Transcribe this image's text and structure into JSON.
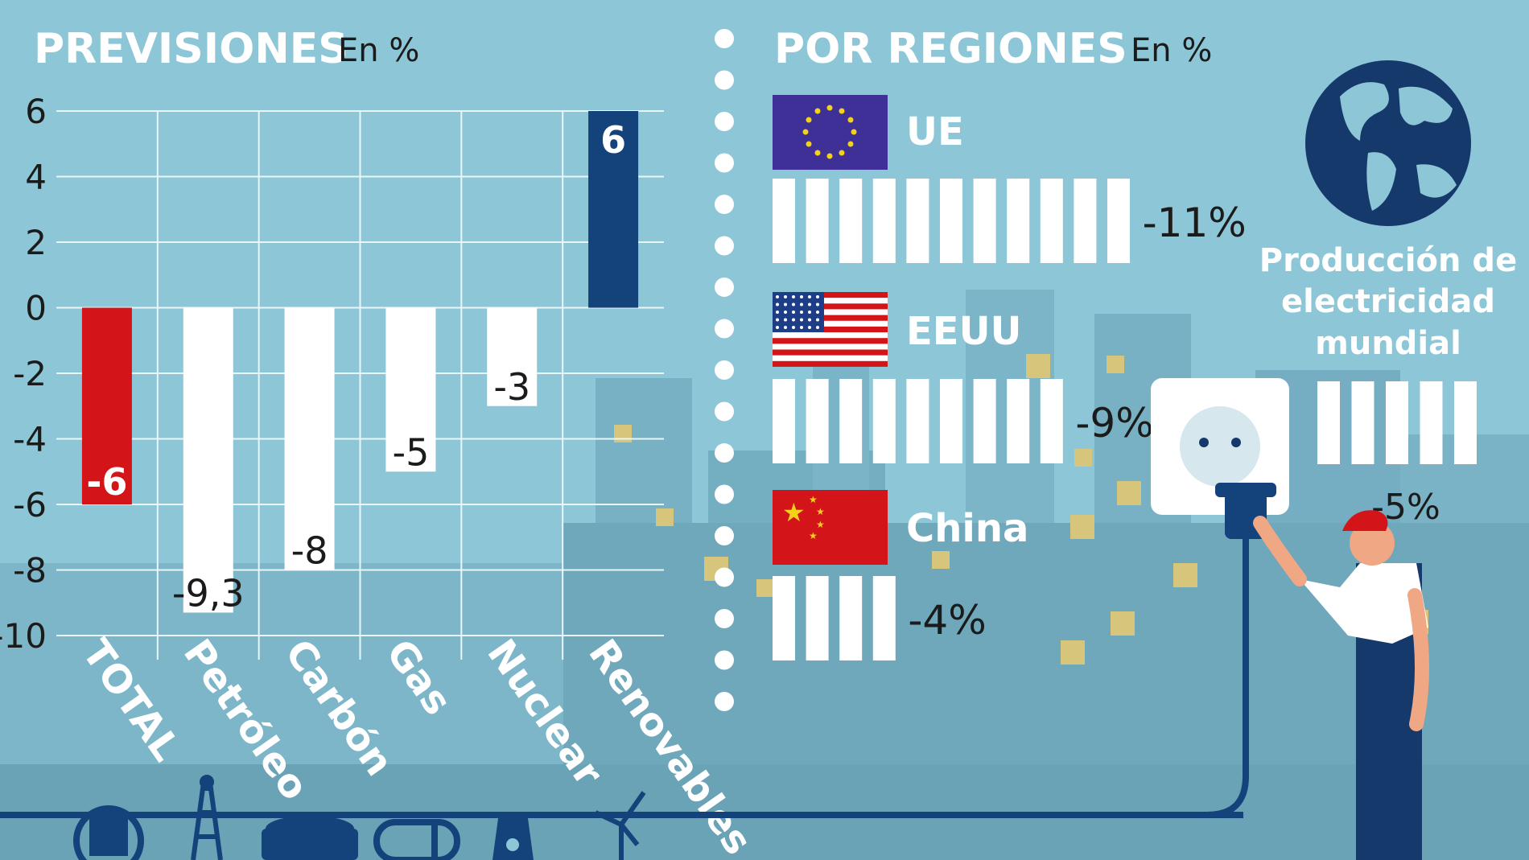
{
  "colors": {
    "background": "#8dc6d6",
    "neg_total": "#d3151a",
    "pos_renewables": "#14427a",
    "white_bar": "#ffffff",
    "grid": "#e9f5f8",
    "navy": "#16396b"
  },
  "left": {
    "title": "PREVISIONES",
    "unit": "En %"
  },
  "right": {
    "title": "POR REGIONES",
    "unit": "En %"
  },
  "chart_data": [
    {
      "type": "bar",
      "title": "PREVISIONES",
      "ylabel": "En %",
      "categories": [
        "TOTAL",
        "Petróleo",
        "Carbón",
        "Gas",
        "Nuclear",
        "Renovables"
      ],
      "values": [
        -6,
        -9.3,
        -8,
        -5,
        -3,
        6
      ],
      "value_labels": [
        "-6",
        "-9,3",
        "-8",
        "-5",
        "-3",
        "6"
      ],
      "ylim": [
        -10,
        6
      ],
      "yticks": [
        6,
        4,
        2,
        0,
        -2,
        -4,
        -6,
        -8,
        -10
      ],
      "grid": true,
      "legend": "none"
    },
    {
      "type": "bar",
      "title": "POR REGIONES",
      "ylabel": "En %",
      "categories": [
        "UE",
        "EEUU",
        "China"
      ],
      "values": [
        -11,
        -9,
        -4
      ],
      "value_labels": [
        "-11%",
        "-9%",
        "-4%"
      ],
      "orientation": "horizontal",
      "unit_bars": true
    },
    {
      "type": "bar",
      "title": "Producción de electricidad mundial",
      "title_lines": [
        "Producción de",
        "electricidad",
        "mundial"
      ],
      "values": [
        -5
      ],
      "value_labels": [
        "-5%"
      ],
      "unit_bars": true
    }
  ],
  "icons": [
    "oil-barrel-cycle-icon",
    "oil-derrick-icon",
    "coal-wagon-icon",
    "gas-tank-icon",
    "nuclear-plant-icon",
    "wind-turbine-icon",
    "globe-icon",
    "eu-flag-icon",
    "us-flag-icon",
    "china-flag-icon",
    "wall-socket-icon",
    "electrician-icon"
  ]
}
